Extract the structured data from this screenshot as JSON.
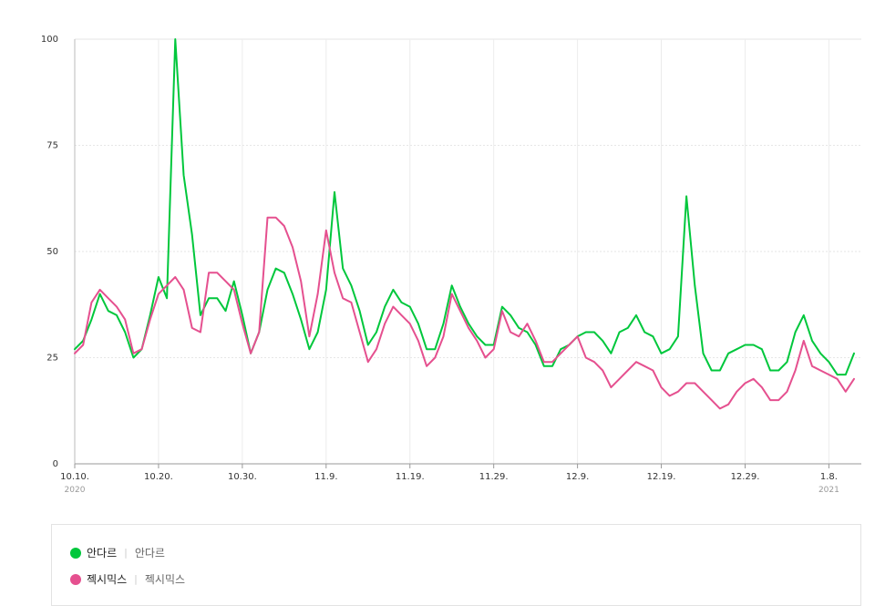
{
  "chart_data": {
    "type": "line",
    "ylim": [
      0,
      100
    ],
    "y_ticks": [
      "0",
      "25",
      "50",
      "75",
      "100"
    ],
    "x_ticks": [
      {
        "label": "10.10.",
        "sub": "2020",
        "index": 0
      },
      {
        "label": "10.20.",
        "sub": "",
        "index": 10
      },
      {
        "label": "10.30.",
        "sub": "",
        "index": 20
      },
      {
        "label": "11.9.",
        "sub": "",
        "index": 30
      },
      {
        "label": "11.19.",
        "sub": "",
        "index": 40
      },
      {
        "label": "11.29.",
        "sub": "",
        "index": 50
      },
      {
        "label": "12.9.",
        "sub": "",
        "index": 60
      },
      {
        "label": "12.19.",
        "sub": "",
        "index": 70
      },
      {
        "label": "12.29.",
        "sub": "",
        "index": 80
      },
      {
        "label": "1.8.",
        "sub": "2021",
        "index": 90
      }
    ],
    "grid": true,
    "series": [
      {
        "name": "안다르",
        "color": "#00c73c",
        "values": [
          27,
          29,
          34,
          40,
          36,
          35,
          31,
          25,
          27,
          35,
          44,
          39,
          100,
          68,
          54,
          35,
          39,
          39,
          36,
          43,
          35,
          26,
          31,
          41,
          46,
          45,
          40,
          34,
          27,
          31,
          41,
          64,
          46,
          42,
          36,
          28,
          31,
          37,
          41,
          38,
          37,
          33,
          27,
          27,
          33,
          42,
          37,
          33,
          30,
          28,
          28,
          37,
          35,
          32,
          31,
          28,
          23,
          23,
          27,
          28,
          30,
          31,
          31,
          29,
          26,
          31,
          32,
          35,
          31,
          30,
          26,
          27,
          30,
          63,
          42,
          26,
          22,
          22,
          26,
          27,
          28,
          28,
          27,
          22,
          22,
          24,
          31,
          35,
          29,
          26,
          24,
          21,
          21,
          26
        ]
      },
      {
        "name": "젝시믹스",
        "color": "#e5508f",
        "values": [
          26,
          28,
          38,
          41,
          39,
          37,
          34,
          26,
          27,
          34,
          40,
          42,
          44,
          41,
          32,
          31,
          45,
          45,
          43,
          41,
          33,
          26,
          31,
          58,
          58,
          56,
          51,
          43,
          30,
          40,
          55,
          45,
          39,
          38,
          31,
          24,
          27,
          33,
          37,
          35,
          33,
          29,
          23,
          25,
          30,
          40,
          36,
          32,
          29,
          25,
          27,
          36,
          31,
          30,
          33,
          29,
          24,
          24,
          26,
          28,
          30,
          25,
          24,
          22,
          18,
          20,
          22,
          24,
          23,
          22,
          18,
          16,
          17,
          19,
          19,
          17,
          15,
          13,
          14,
          17,
          19,
          20,
          18,
          15,
          15,
          17,
          22,
          29,
          23,
          22,
          21,
          20,
          17,
          20
        ]
      }
    ]
  },
  "legend": [
    {
      "name": "안다르",
      "sub": "안다르",
      "color": "#00c73c"
    },
    {
      "name": "젝시믹스",
      "sub": "젝시믹스",
      "color": "#e5508f"
    }
  ]
}
